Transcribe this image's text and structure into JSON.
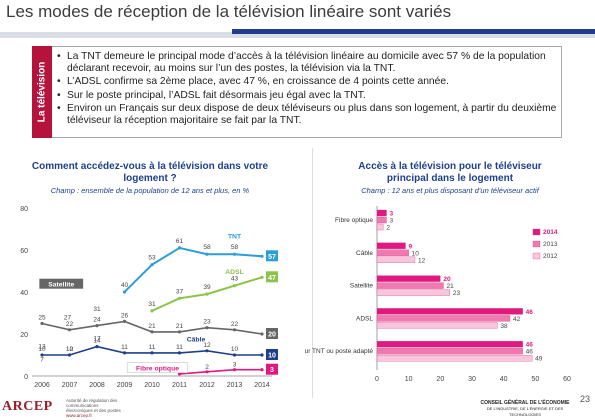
{
  "header": {
    "title": "Les modes de réception de la télévision linéaire sont variés"
  },
  "summary_box": {
    "side_label": "La télévision",
    "bullets": [
      "La TNT demeure le principal mode d’accès à la télévision linéaire au domicile avec 57 % de la population déclarant recevoir, au moins sur l’un des postes, la télévision via la TNT.",
      "L’ADSL confirme sa 2ème place, avec 47 %, en croissance de 4 points cette année.",
      "Sur le poste principal, l’ADSL fait désormais jeu égal avec la TNT.",
      "Environ un Français sur deux dispose de deux téléviseurs ou plus dans son logement, à partir du deuxième téléviseur la réception majoritaire se fait par la TNT."
    ]
  },
  "left_panel": {
    "title_line1": "Comment accédez-vous à la télévision dans votre",
    "title_line2": "logement ?",
    "subtitle": "Champ : ensemble de la population de 12 ans et plus, en %"
  },
  "right_panel": {
    "title_line1": "Accès à la télévision pour le téléviseur",
    "title_line2": "principal dans le logement",
    "subtitle": "Champ : 12 ans et plus disposant d’un téléviseur actif"
  },
  "chart_data": [
    {
      "type": "line",
      "x": [
        "2006",
        "2007",
        "2008",
        "2009",
        "2010",
        "2011",
        "2012",
        "2013",
        "2014"
      ],
      "ylim": [
        0,
        80
      ],
      "yticks": [
        0,
        20,
        40,
        60,
        80
      ],
      "grid": false,
      "series": [
        {
          "name": "TNT",
          "color": "#2a9fd6",
          "values": [
            null,
            null,
            null,
            40,
            53,
            61,
            58,
            58,
            57
          ]
        },
        {
          "name": "ADSL",
          "color": "#8bc34a",
          "values": [
            null,
            null,
            null,
            null,
            31,
            37,
            39,
            43,
            47
          ]
        },
        {
          "name": "Satellite",
          "color": "#666666",
          "values": [
            25,
            22,
            24,
            26,
            21,
            21,
            23,
            22,
            20
          ]
        },
        {
          "name": "Câble",
          "color": "#1f3f8c",
          "values": [
            10,
            10,
            14,
            11,
            11,
            11,
            12,
            10,
            10
          ]
        },
        {
          "name": "Fibre optique",
          "color": "#e0187f",
          "values": [
            null,
            null,
            null,
            null,
            null,
            1,
            2,
            3,
            3
          ]
        }
      ],
      "data_labels": [
        {
          "series": "TNT",
          "points": [
            [
              3,
              "40"
            ],
            [
              4,
              "53"
            ],
            [
              5,
              "61"
            ],
            [
              6,
              "58"
            ],
            [
              7,
              "58"
            ]
          ]
        },
        {
          "series": "ADSL",
          "points": [
            [
              4,
              "31"
            ],
            [
              5,
              "37"
            ],
            [
              6,
              "39"
            ],
            [
              7,
              "43"
            ]
          ]
        },
        {
          "series": "Satellite",
          "points": [
            [
              0,
              "25"
            ],
            [
              1,
              "22"
            ],
            [
              2,
              "24"
            ],
            [
              3,
              "26"
            ],
            [
              4,
              "21"
            ],
            [
              5,
              "21"
            ],
            [
              6,
              "23"
            ],
            [
              7,
              "22"
            ]
          ]
        },
        {
          "series": "Câble",
          "points": [
            [
              0,
              "10"
            ],
            [
              1,
              "10"
            ],
            [
              2,
              "14"
            ],
            [
              3,
              "11"
            ],
            [
              4,
              "11"
            ],
            [
              5,
              "11"
            ],
            [
              6,
              "12"
            ],
            [
              7,
              "10"
            ]
          ]
        },
        {
          "series": "Fibre optique",
          "points": [
            [
              5,
              "1"
            ],
            [
              6,
              "2"
            ],
            [
              7,
              "3"
            ]
          ]
        }
      ],
      "extra_labels": [
        "27",
        "31",
        "17",
        "12",
        "13",
        "7"
      ],
      "end_badges": [
        {
          "series": "TNT",
          "value": "57"
        },
        {
          "series": "ADSL",
          "value": "47"
        },
        {
          "series": "Satellite",
          "value": "20"
        },
        {
          "series": "Câble",
          "value": "10"
        },
        {
          "series": "Fibre optique",
          "value": "3"
        }
      ]
    },
    {
      "type": "bar",
      "orientation": "horizontal",
      "categories": [
        "Fibre optique",
        "Câble",
        "Satellite",
        "ADSL",
        "Décodeur TNT ou poste adapté"
      ],
      "xlim": [
        0,
        60
      ],
      "xticks": [
        0,
        10,
        20,
        30,
        40,
        50,
        60
      ],
      "legend_position": "right",
      "series": [
        {
          "name": "2014",
          "color": "#e0187f",
          "values": [
            3,
            9,
            20,
            46,
            46
          ]
        },
        {
          "name": "2013",
          "color": "#f07ab0",
          "values": [
            3,
            10,
            21,
            42,
            46
          ]
        },
        {
          "name": "2012",
          "color": "#f8c5dc",
          "values": [
            2,
            12,
            23,
            38,
            49
          ]
        }
      ]
    }
  ],
  "footer": {
    "logo": "ARCEP",
    "logo_sub": "Autorité de régulation des communications électroniques et des postes",
    "website": "www.arcep.fr",
    "cge": "CONSEIL GÉNÉRAL DE L’ÉCONOMIE",
    "cge_sub": "DE L’INDUSTRIE, DE L’ÉNERGIE ET DES TECHNOLOGIES",
    "page": "23"
  }
}
